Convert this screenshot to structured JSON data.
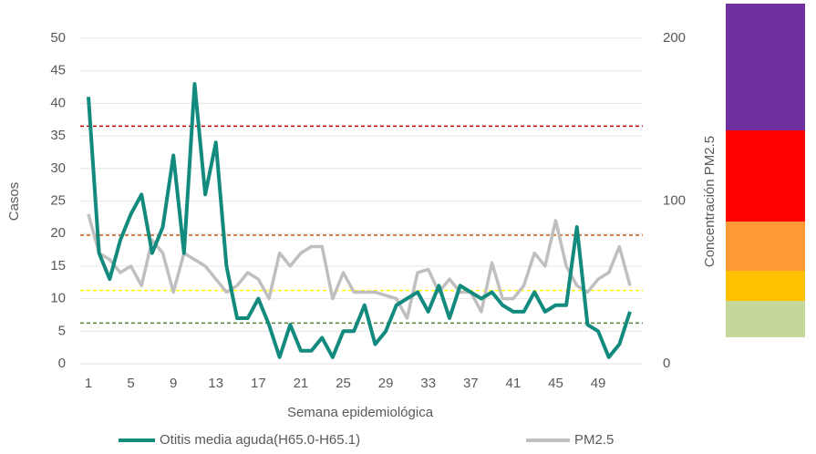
{
  "chart_data": {
    "type": "line",
    "x_label": "Semana epidemiológica",
    "y_label": "Casos",
    "y2_label": "Concentración PM2.5",
    "categories": [
      1,
      null,
      null,
      null,
      5,
      null,
      null,
      null,
      9,
      null,
      null,
      null,
      13,
      null,
      null,
      null,
      17,
      null,
      null,
      null,
      21,
      null,
      null,
      null,
      25,
      null,
      null,
      null,
      29,
      null,
      null,
      null,
      33,
      null,
      null,
      null,
      37,
      null,
      null,
      null,
      41,
      null,
      null,
      null,
      45,
      null,
      null,
      null,
      49,
      null,
      null,
      null
    ],
    "series": [
      {
        "name": "Otitis media aguda(H65.0-H65.1)",
        "color": "#138a7e",
        "values": [
          41,
          17,
          13,
          19,
          23,
          26,
          17,
          21,
          32,
          17,
          43,
          26,
          34,
          15,
          7,
          7,
          10,
          6,
          1,
          6,
          2,
          2,
          4,
          1,
          5,
          5,
          9,
          3,
          5,
          9,
          10,
          11,
          8,
          12,
          7,
          12,
          11,
          10,
          11,
          9,
          8,
          8,
          11,
          8,
          9,
          9,
          21,
          6,
          5,
          1,
          3,
          8
        ]
      },
      {
        "name": "PM2.5",
        "color": "#bfbfbf",
        "axis": "y2",
        "values": [
          92,
          68,
          64,
          56,
          60,
          48,
          76,
          68,
          44,
          68,
          64,
          60,
          52,
          44,
          48,
          56,
          52,
          40,
          68,
          60,
          68,
          72,
          72,
          40,
          56,
          44,
          44,
          44,
          42,
          40,
          28,
          56,
          58,
          44,
          52,
          44,
          44,
          32,
          62,
          40,
          40,
          48,
          68,
          60,
          88,
          60,
          48,
          44,
          52,
          56,
          72,
          48
        ]
      }
    ],
    "reference_lines": [
      {
        "value": 146,
        "color": "#c00000",
        "axis": "y2"
      },
      {
        "value": 79,
        "color": "#c55a11",
        "axis": "y2"
      },
      {
        "value": 45,
        "color": "#ffff00",
        "axis": "y2"
      },
      {
        "value": 25,
        "color": "#548235",
        "axis": "y2"
      }
    ],
    "ylim": [
      0,
      50
    ],
    "yticks": [
      0,
      5,
      10,
      15,
      20,
      25,
      30,
      35,
      40,
      45,
      50
    ],
    "y2lim": [
      0,
      200
    ],
    "y2ticks": [
      0,
      100,
      200
    ],
    "grid": true
  }
}
